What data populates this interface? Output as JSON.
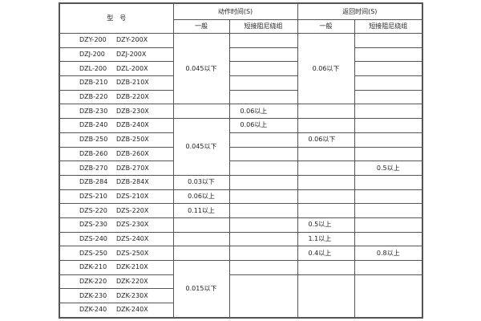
{
  "header": {
    "model": "型　号",
    "action_time": "动作时间(S)",
    "return_time": "返回时间(S)",
    "general": "一般",
    "short_damping": "短接阻尼绕组"
  },
  "rows": [
    {
      "model_a": "DZY-200",
      "model_b": "DZY-200X",
      "action_general": "0.045以下",
      "action_short": "",
      "return_general": "0.06以下",
      "return_short": ""
    },
    {
      "model_a": "DZJ-200",
      "model_b": "DZJ-200X",
      "action_short": "",
      "return_short": ""
    },
    {
      "model_a": "DZL-200",
      "model_b": "DZL-200X",
      "action_short": "",
      "return_short": ""
    },
    {
      "model_a": "DZB-210",
      "model_b": "DZB-210X",
      "action_short": "",
      "return_short": ""
    },
    {
      "model_a": "DZB-220",
      "model_b": "DZB-220X",
      "action_short": "",
      "return_short": ""
    },
    {
      "model_a": "DZB-230",
      "model_b": "DZB-230X",
      "action_general": "",
      "action_short": "0.06以上",
      "return_general": "",
      "return_short": ""
    },
    {
      "model_a": "DZB-240",
      "model_b": "DZB-240X",
      "action_general": "0.045以下",
      "action_short": "0.06以上",
      "return_general": "",
      "return_short": ""
    },
    {
      "model_a": "DZB-250",
      "model_b": "DZB-250X",
      "action_short": "",
      "return_general": "0.06以下",
      "return_short": ""
    },
    {
      "model_a": "DZB-260",
      "model_b": "DZB-260X",
      "action_short": "",
      "return_general": "",
      "return_short": ""
    },
    {
      "model_a": "DZB-270",
      "model_b": "DZB-270X",
      "action_short": "",
      "return_general": "",
      "return_short": "0.5以上"
    },
    {
      "model_a": "DZB-284",
      "model_b": "DZB-284X",
      "action_general": "0.03以下",
      "action_short": "",
      "return_general": "",
      "return_short": ""
    },
    {
      "model_a": "DZS-210",
      "model_b": "DZS-210X",
      "action_general": "0.06以上",
      "action_short": "",
      "return_general": "",
      "return_short": ""
    },
    {
      "model_a": "DZS-220",
      "model_b": "DZS-220X",
      "action_general": "0.11以上",
      "action_short": "",
      "return_general": "",
      "return_short": ""
    },
    {
      "model_a": "DZS-230",
      "model_b": "DZS-230X",
      "action_general": "",
      "action_short": "",
      "return_general": "0.5以上",
      "return_short": ""
    },
    {
      "model_a": "DZS-240",
      "model_b": "DZS-240X",
      "action_general": "",
      "action_short": "",
      "return_general": "1.1以上",
      "return_short": ""
    },
    {
      "model_a": "DZS-250",
      "model_b": "DZS-250X",
      "action_general": "",
      "action_short": "",
      "return_general": "0.4以上",
      "return_short": "0.8以上"
    },
    {
      "model_a": "DZK-210",
      "model_b": "DZK-210X",
      "action_general": "0.015以下",
      "action_short": "",
      "return_general": "",
      "return_short": ""
    },
    {
      "model_a": "DZK-220",
      "model_b": "DZK-220X",
      "action_short": "",
      "return_general": "",
      "return_short": ""
    },
    {
      "model_a": "DZK-230",
      "model_b": "DZK-230X"
    },
    {
      "model_a": "DZK-240",
      "model_b": "DZK-240X"
    }
  ]
}
